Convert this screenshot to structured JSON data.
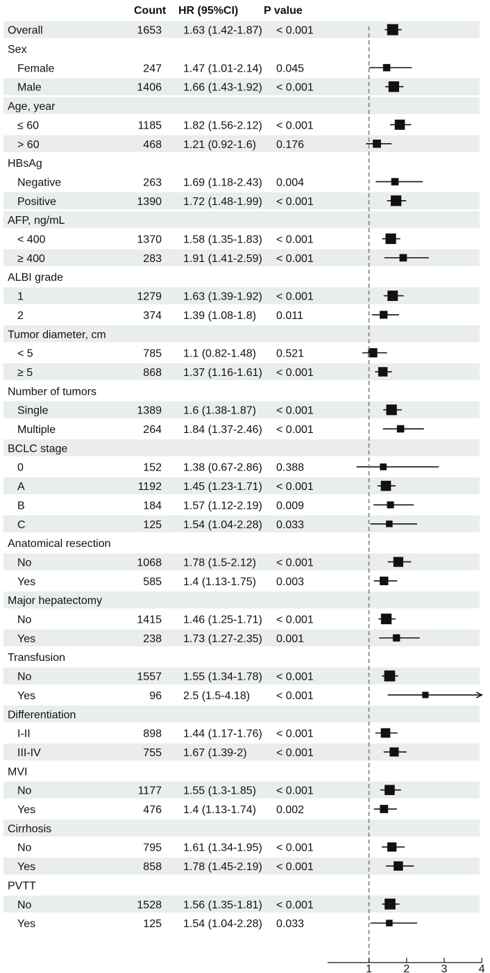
{
  "chart_data": {
    "type": "forest",
    "headers": {
      "count": "Count",
      "hr": "HR (95%CI)",
      "p_italic": "P",
      "p_rest": " value"
    },
    "x_axis": {
      "ticks": [
        1,
        2,
        3,
        4
      ],
      "range": [
        -0.1,
        4.0
      ],
      "reference_line": 1
    },
    "arrow_indicator": "→",
    "rows": [
      {
        "label": "Overall",
        "indent": false,
        "shaded": true,
        "count": "1653",
        "hr_text": "1.63 (1.42-1.87)",
        "p_text": "< 0.001",
        "hr": 1.63,
        "lo": 1.42,
        "hi": 1.87
      },
      {
        "label": "Sex",
        "indent": false,
        "shaded": false
      },
      {
        "label": "Female",
        "indent": true,
        "shaded": false,
        "count": "247",
        "hr_text": "1.47 (1.01-2.14)",
        "p_text": "0.045",
        "hr": 1.47,
        "lo": 1.01,
        "hi": 2.14
      },
      {
        "label": "Male",
        "indent": true,
        "shaded": true,
        "count": "1406",
        "hr_text": "1.66 (1.43-1.92)",
        "p_text": "< 0.001",
        "hr": 1.66,
        "lo": 1.43,
        "hi": 1.92
      },
      {
        "label": "Age, year",
        "indent": false,
        "shaded": true
      },
      {
        "label": "≤ 60",
        "indent": true,
        "shaded": false,
        "count": "1185",
        "hr_text": "1.82 (1.56-2.12)",
        "p_text": "< 0.001",
        "hr": 1.82,
        "lo": 1.56,
        "hi": 2.12
      },
      {
        "label": "> 60",
        "indent": true,
        "shaded": true,
        "count": "468",
        "hr_text": "1.21 (0.92-1.6)",
        "p_text": "0.176",
        "hr": 1.21,
        "lo": 0.92,
        "hi": 1.6
      },
      {
        "label": "HBsAg",
        "indent": false,
        "shaded": false
      },
      {
        "label": "Negative",
        "indent": true,
        "shaded": false,
        "count": "263",
        "hr_text": "1.69 (1.18-2.43)",
        "p_text": "0.004",
        "hr": 1.69,
        "lo": 1.18,
        "hi": 2.43
      },
      {
        "label": "Positive",
        "indent": true,
        "shaded": true,
        "count": "1390",
        "hr_text": "1.72 (1.48-1.99)",
        "p_text": "< 0.001",
        "hr": 1.72,
        "lo": 1.48,
        "hi": 1.99
      },
      {
        "label": "AFP, ng/mL",
        "indent": false,
        "shaded": true
      },
      {
        "label": "< 400",
        "indent": true,
        "shaded": false,
        "count": "1370",
        "hr_text": "1.58 (1.35-1.83)",
        "p_text": "< 0.001",
        "hr": 1.58,
        "lo": 1.35,
        "hi": 1.83
      },
      {
        "label": "≥ 400",
        "indent": true,
        "shaded": true,
        "count": "283",
        "hr_text": "1.91 (1.41-2.59)",
        "p_text": "< 0.001",
        "hr": 1.91,
        "lo": 1.41,
        "hi": 2.59
      },
      {
        "label": "ALBI grade",
        "indent": false,
        "shaded": false
      },
      {
        "label": "1",
        "indent": true,
        "shaded": true,
        "count": "1279",
        "hr_text": "1.63 (1.39-1.92)",
        "p_text": "< 0.001",
        "hr": 1.63,
        "lo": 1.39,
        "hi": 1.92
      },
      {
        "label": "2",
        "indent": true,
        "shaded": false,
        "count": "374",
        "hr_text": "1.39 (1.08-1.8)",
        "p_text": "0.011",
        "hr": 1.39,
        "lo": 1.08,
        "hi": 1.8
      },
      {
        "label": "Tumor diameter, cm",
        "indent": false,
        "shaded": true
      },
      {
        "label": "< 5",
        "indent": true,
        "shaded": false,
        "count": "785",
        "hr_text": "1.1 (0.82-1.48)",
        "p_text": "0.521",
        "hr": 1.1,
        "lo": 0.82,
        "hi": 1.48
      },
      {
        "label": "≥ 5",
        "indent": true,
        "shaded": true,
        "count": "868",
        "hr_text": "1.37 (1.16-1.61)",
        "p_text": "< 0.001",
        "hr": 1.37,
        "lo": 1.16,
        "hi": 1.61
      },
      {
        "label": "Number of tumors",
        "indent": false,
        "shaded": false
      },
      {
        "label": "Single",
        "indent": true,
        "shaded": true,
        "count": "1389",
        "hr_text": "1.6 (1.38-1.87)",
        "p_text": "< 0.001",
        "hr": 1.6,
        "lo": 1.38,
        "hi": 1.87
      },
      {
        "label": "Multiple",
        "indent": true,
        "shaded": false,
        "count": "264",
        "hr_text": "1.84 (1.37-2.46)",
        "p_text": "< 0.001",
        "hr": 1.84,
        "lo": 1.37,
        "hi": 2.46
      },
      {
        "label": "BCLC stage",
        "indent": false,
        "shaded": true
      },
      {
        "label": "0",
        "indent": true,
        "shaded": false,
        "count": "152",
        "hr_text": "1.38 (0.67-2.86)",
        "p_text": "0.388",
        "hr": 1.38,
        "lo": 0.67,
        "hi": 2.86
      },
      {
        "label": "A",
        "indent": true,
        "shaded": true,
        "count": "1192",
        "hr_text": "1.45 (1.23-1.71)",
        "p_text": "< 0.001",
        "hr": 1.45,
        "lo": 1.23,
        "hi": 1.71
      },
      {
        "label": "B",
        "indent": true,
        "shaded": false,
        "count": "184",
        "hr_text": "1.57 (1.12-2.19)",
        "p_text": "0.009",
        "hr": 1.57,
        "lo": 1.12,
        "hi": 2.19
      },
      {
        "label": "C",
        "indent": true,
        "shaded": true,
        "count": "125",
        "hr_text": "1.54 (1.04-2.28)",
        "p_text": "0.033",
        "hr": 1.54,
        "lo": 1.04,
        "hi": 2.28
      },
      {
        "label": "Anatomical resection",
        "indent": false,
        "shaded": false
      },
      {
        "label": "No",
        "indent": true,
        "shaded": true,
        "count": "1068",
        "hr_text": "1.78 (1.5-2.12)",
        "p_text": "< 0.001",
        "hr": 1.78,
        "lo": 1.5,
        "hi": 2.12
      },
      {
        "label": "Yes",
        "indent": true,
        "shaded": false,
        "count": "585",
        "hr_text": "1.4 (1.13-1.75)",
        "p_text": "0.003",
        "hr": 1.4,
        "lo": 1.13,
        "hi": 1.75
      },
      {
        "label": "Major hepatectomy",
        "indent": false,
        "shaded": true
      },
      {
        "label": "No",
        "indent": true,
        "shaded": false,
        "count": "1415",
        "hr_text": "1.46 (1.25-1.71)",
        "p_text": "< 0.001",
        "hr": 1.46,
        "lo": 1.25,
        "hi": 1.71
      },
      {
        "label": "Yes",
        "indent": true,
        "shaded": true,
        "count": "238",
        "hr_text": "1.73 (1.27-2.35)",
        "p_text": "0.001",
        "hr": 1.73,
        "lo": 1.27,
        "hi": 2.35
      },
      {
        "label": "Transfusion",
        "indent": false,
        "shaded": false
      },
      {
        "label": "No",
        "indent": true,
        "shaded": true,
        "count": "1557",
        "hr_text": "1.55 (1.34-1.78)",
        "p_text": "< 0.001",
        "hr": 1.55,
        "lo": 1.34,
        "hi": 1.78
      },
      {
        "label": "Yes",
        "indent": true,
        "shaded": false,
        "count": "96",
        "hr_text": "2.5 (1.5-4.18)",
        "p_text": "< 0.001",
        "hr": 2.5,
        "lo": 1.5,
        "hi": 4.18,
        "arrow": true
      },
      {
        "label": "Differentiation",
        "indent": false,
        "shaded": true
      },
      {
        "label": "I-II",
        "indent": true,
        "shaded": false,
        "count": "898",
        "hr_text": "1.44 (1.17-1.76)",
        "p_text": "< 0.001",
        "hr": 1.44,
        "lo": 1.17,
        "hi": 1.76
      },
      {
        "label": "III-IV",
        "indent": true,
        "shaded": true,
        "count": "755",
        "hr_text": "1.67 (1.39-2)",
        "p_text": "< 0.001",
        "hr": 1.67,
        "lo": 1.39,
        "hi": 2.0
      },
      {
        "label": "MVI",
        "indent": false,
        "shaded": false
      },
      {
        "label": "No",
        "indent": true,
        "shaded": true,
        "count": "1177",
        "hr_text": "1.55 (1.3-1.85)",
        "p_text": "< 0.001",
        "hr": 1.55,
        "lo": 1.3,
        "hi": 1.85
      },
      {
        "label": "Yes",
        "indent": true,
        "shaded": false,
        "count": "476",
        "hr_text": "1.4 (1.13-1.74)",
        "p_text": "0.002",
        "hr": 1.4,
        "lo": 1.13,
        "hi": 1.74
      },
      {
        "label": "Cirrhosis",
        "indent": false,
        "shaded": true
      },
      {
        "label": "No",
        "indent": true,
        "shaded": false,
        "count": "795",
        "hr_text": "1.61 (1.34-1.95)",
        "p_text": "< 0.001",
        "hr": 1.61,
        "lo": 1.34,
        "hi": 1.95
      },
      {
        "label": "Yes",
        "indent": true,
        "shaded": true,
        "count": "858",
        "hr_text": "1.78 (1.45-2.19)",
        "p_text": "< 0.001",
        "hr": 1.78,
        "lo": 1.45,
        "hi": 2.19
      },
      {
        "label": "PVTT",
        "indent": false,
        "shaded": false
      },
      {
        "label": "No",
        "indent": true,
        "shaded": true,
        "count": "1528",
        "hr_text": "1.56 (1.35-1.81)",
        "p_text": "< 0.001",
        "hr": 1.56,
        "lo": 1.35,
        "hi": 1.81
      },
      {
        "label": "Yes",
        "indent": true,
        "shaded": false,
        "count": "125",
        "hr_text": "1.54 (1.04-2.28)",
        "p_text": "0.033",
        "hr": 1.54,
        "lo": 1.04,
        "hi": 2.28
      }
    ]
  }
}
